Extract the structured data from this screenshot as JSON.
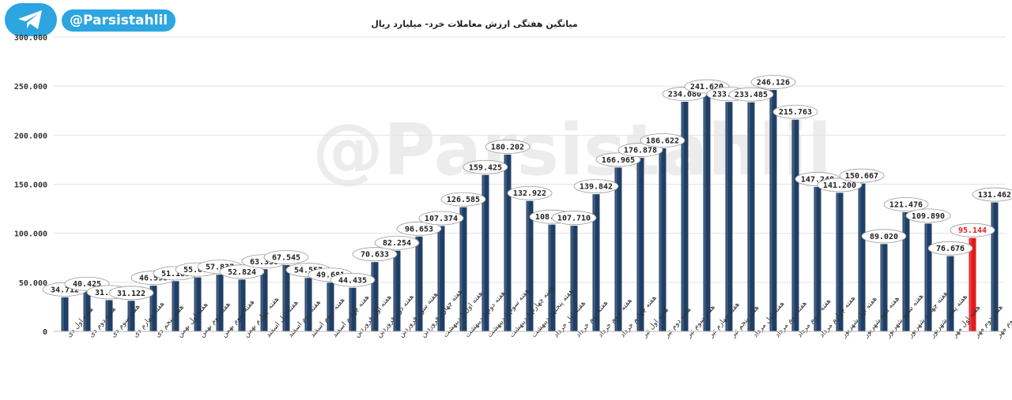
{
  "header": {
    "handle": "@Parsistahlil",
    "watermark": "@Parsistahlil",
    "telegram_icon": "telegram-plane-icon",
    "badge_color": "#2ca5e0"
  },
  "chart_data": {
    "type": "bar",
    "title": "میانگین هفتگی ارزش معاملات خرد- میلیارد ریال",
    "xlabel": "",
    "ylabel": "",
    "ylim": [
      0,
      300000
    ],
    "yticks": [
      0,
      50000,
      100000,
      150000,
      200000,
      250000,
      300000
    ],
    "ytick_labels": [
      "0",
      "50.000",
      "100.000",
      "150.000",
      "200.000",
      "250.000",
      "300.000"
    ],
    "grid": true,
    "legend": "none",
    "bar_color": "#1f3f66",
    "highlight_color": "#e31a1c",
    "highlight_index": 41,
    "categories": [
      "هفته اول دی",
      "هفته دوم دی",
      "هفته سوم دی",
      "هفته چهارم دی",
      "هفته پنجم دی",
      "هفته اول بهمن",
      "هفته دوم بهمن",
      "هفته سوم بهمن",
      "هفته چهارم بهمن",
      "هفته اول اسفند",
      "هفته دوم اسفند",
      "هفته سوم اسفند",
      "هفته چهارم اسفند",
      "هفته اول فروردین",
      "هفته دوم فروردین",
      "هفته سوم فروردین",
      "هفته چهارم فروردین",
      "هفته اول اردیبهشت",
      "هفته دوم اردیبهشت",
      "هفته سوم اردیبهشت",
      "هفته چهارم اردیبهشت",
      "هفته پنجم اردیبهشت",
      "هفته اول خرداد",
      "هفته دوم خرداد",
      "هفته سوم خرداد",
      "هفته چهارم خرداد",
      "هفته اول تیر",
      "هفته دوم تیر",
      "هفته سوم تیر",
      "هفته چهارم تیر",
      "هفته پنجم تیر",
      "هفته اول مرداد",
      "هفته دوم مرداد",
      "هفته سوم مرداد",
      "هفته چهارم مرداد",
      "هفته اول شهریور",
      "هفته دوم شهریور",
      "هفته سوم شهریور",
      "هفته چهارم شهریور",
      "هفته پنجم شهریور",
      "هفته اول مهر",
      "هفته دوم مهر",
      "هفته سوم مهر"
    ],
    "values": [
      34712,
      40425,
      31842,
      31122,
      46590,
      51183,
      55005,
      57837,
      52824,
      63330,
      67545,
      54557,
      49681,
      44435,
      70633,
      82254,
      96653,
      107374,
      126585,
      159425,
      180202,
      132922,
      108824,
      107710,
      139842,
      166965,
      176878,
      186622,
      234080,
      241620,
      233850,
      233485,
      246126,
      215763,
      147248,
      141200,
      150667,
      89020,
      121476,
      109890,
      76676,
      95144,
      131462
    ],
    "data_labels": [
      "34.712",
      "40.425",
      "31.842",
      "31.122",
      "46.590",
      "51.183",
      "55.005",
      "57.837",
      "52.824",
      "63.330",
      "67.545",
      "54.557",
      "49.681",
      "44.435",
      "70.633",
      "82.254",
      "96.653",
      "107.374",
      "126.585",
      "159.425",
      "180.202",
      "132.922",
      "108.824",
      "107.710",
      "139.842",
      "166.965",
      "176.878",
      "186.622",
      "234.080",
      "241.620",
      "233.850",
      "233.485",
      "246.126",
      "215.763",
      "147.248",
      "141.200",
      "150.667",
      "89.020",
      "121.476",
      "109.890",
      "76.676",
      "95.144",
      "131.462"
    ]
  }
}
